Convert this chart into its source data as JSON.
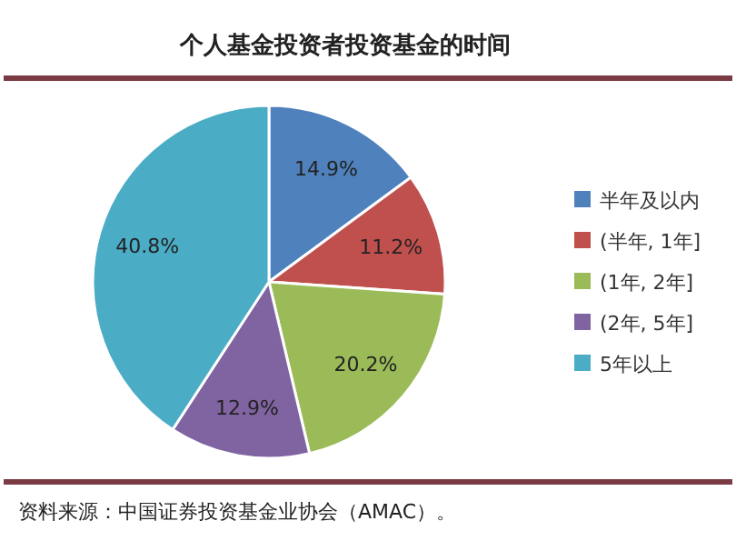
{
  "chart_data": {
    "type": "pie",
    "title": "个人基金投资者投资基金的时间",
    "categories": [
      "半年及以内",
      "(半年, 1年]",
      "(1年, 2年]",
      "(2年, 5年]",
      "5年以上"
    ],
    "values": [
      14.9,
      11.2,
      20.2,
      12.9,
      40.8
    ],
    "value_labels": [
      "14.9%",
      "11.2%",
      "20.2%",
      "12.9%",
      "40.8%"
    ],
    "colors": [
      "#4f81bd",
      "#c0504d",
      "#9bbb59",
      "#8064a2",
      "#4bacc6"
    ],
    "legend": "right",
    "annotations": [
      "资料来源：中国证券投资基金业协会（AMAC）。"
    ]
  }
}
